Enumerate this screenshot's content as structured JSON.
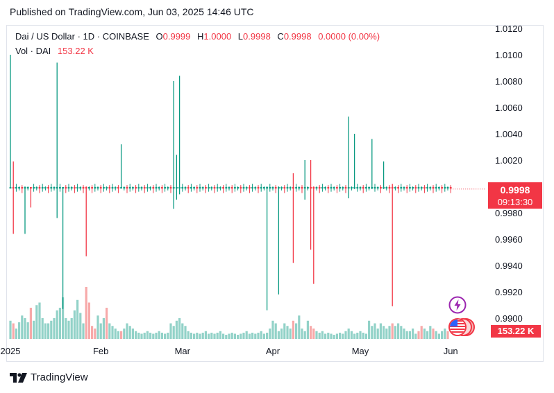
{
  "published": "Published on TradingView.com, Jun 03, 2025 14:46 UTC",
  "legend": {
    "symbol": "Dai / US Dollar · 1D · COINBASE",
    "o_label": "O",
    "o_value": "0.9999",
    "h_label": "H",
    "h_value": "1.0000",
    "l_label": "L",
    "l_value": "0.9998",
    "c_label": "C",
    "c_value": "0.9998",
    "change": "0.0000 (0.00%)",
    "vol_label": "Vol · DAI",
    "vol_value": "153.22 K"
  },
  "price_tag": {
    "price": "0.9998",
    "countdown": "09:13:30"
  },
  "volume_tag": "153.22 K",
  "brand": "TradingView",
  "colors": {
    "up": "#089981",
    "down": "#f23645",
    "up_vol": "#92d2c8",
    "down_vol": "#f7a9a9",
    "text": "#131722",
    "accent": "#9c27b0"
  },
  "icons": [
    "flash-icon",
    "us-flag-icon",
    "tradingview-logo-icon"
  ],
  "chart_data": {
    "type": "candlestick",
    "y_ticks": [
      "1.0120",
      "1.0100",
      "1.0080",
      "1.0060",
      "1.0040",
      "1.0020",
      "0.9980",
      "0.9960",
      "0.9940",
      "0.9920",
      "0.9900"
    ],
    "ylim": [
      0.9885,
      1.013
    ],
    "x_ticks": [
      {
        "label": "2025",
        "day": 0
      },
      {
        "label": "Feb",
        "day": 31
      },
      {
        "label": "Mar",
        "day": 59
      },
      {
        "label": "Apr",
        "day": 90
      },
      {
        "label": "May",
        "day": 120
      },
      {
        "label": "Jun",
        "day": 151
      }
    ],
    "last_close": 0.9998,
    "current_volume": "153.22 K",
    "spike_candles": [
      {
        "day": 0,
        "high": 1.01,
        "low": 0.9999,
        "dir": "up"
      },
      {
        "day": 1,
        "high": 1.0019,
        "low": 0.9964,
        "dir": "down"
      },
      {
        "day": 5,
        "high": 1.0,
        "low": 0.9964,
        "dir": "up"
      },
      {
        "day": 7,
        "high": 0.9999,
        "low": 0.9984,
        "dir": "down"
      },
      {
        "day": 16,
        "high": 1.0094,
        "low": 0.9976,
        "dir": "up"
      },
      {
        "day": 18,
        "high": 0.9999,
        "low": 0.9907,
        "dir": "up"
      },
      {
        "day": 26,
        "high": 1.0,
        "low": 0.9947,
        "dir": "down"
      },
      {
        "day": 38,
        "high": 1.0032,
        "low": 0.9999,
        "dir": "up"
      },
      {
        "day": 56,
        "high": 1.008,
        "low": 0.9983,
        "dir": "up"
      },
      {
        "day": 57,
        "high": 1.0024,
        "low": 0.999,
        "dir": "up"
      },
      {
        "day": 58,
        "high": 1.0084,
        "low": 0.9994,
        "dir": "up"
      },
      {
        "day": 88,
        "high": 1.0,
        "low": 0.9906,
        "dir": "up"
      },
      {
        "day": 92,
        "high": 1.0,
        "low": 0.9918,
        "dir": "up"
      },
      {
        "day": 97,
        "high": 1.001,
        "low": 0.9942,
        "dir": "down"
      },
      {
        "day": 101,
        "high": 1.002,
        "low": 0.999,
        "dir": "up"
      },
      {
        "day": 103,
        "high": 1.002,
        "low": 0.9952,
        "dir": "down"
      },
      {
        "day": 104,
        "high": 1.0,
        "low": 0.9926,
        "dir": "down"
      },
      {
        "day": 116,
        "high": 1.0053,
        "low": 0.9991,
        "dir": "up"
      },
      {
        "day": 118,
        "high": 1.004,
        "low": 0.9998,
        "dir": "up"
      },
      {
        "day": 124,
        "high": 1.0036,
        "low": 0.9998,
        "dir": "up"
      },
      {
        "day": 128,
        "high": 1.0019,
        "low": 0.9998,
        "dir": "up"
      },
      {
        "day": 131,
        "high": 1.0002,
        "low": 0.9909,
        "dir": "down"
      }
    ],
    "volumes": [
      0.35,
      0.3,
      0.2,
      0.32,
      0.45,
      0.4,
      0.32,
      0.6,
      0.35,
      0.65,
      0.7,
      0.4,
      0.3,
      0.3,
      0.35,
      0.4,
      0.55,
      0.6,
      0.8,
      0.4,
      0.35,
      0.4,
      0.55,
      0.75,
      0.5,
      0.3,
      1.0,
      0.7,
      0.25,
      0.2,
      0.45,
      0.3,
      0.4,
      0.6,
      0.3,
      0.25,
      0.2,
      0.15,
      0.15,
      0.2,
      0.3,
      0.25,
      0.2,
      0.15,
      0.12,
      0.1,
      0.12,
      0.15,
      0.12,
      0.1,
      0.12,
      0.15,
      0.12,
      0.1,
      0.12,
      0.3,
      0.25,
      0.35,
      0.4,
      0.3,
      0.25,
      0.15,
      0.12,
      0.1,
      0.12,
      0.1,
      0.12,
      0.15,
      0.1,
      0.12,
      0.1,
      0.12,
      0.15,
      0.1,
      0.08,
      0.1,
      0.12,
      0.1,
      0.08,
      0.1,
      0.12,
      0.15,
      0.1,
      0.12,
      0.1,
      0.12,
      0.15,
      0.1,
      0.12,
      0.2,
      0.35,
      0.3,
      0.15,
      0.2,
      0.3,
      0.25,
      0.2,
      0.35,
      0.3,
      0.45,
      0.2,
      0.15,
      0.35,
      0.25,
      0.2,
      0.15,
      0.12,
      0.15,
      0.1,
      0.12,
      0.1,
      0.08,
      0.1,
      0.12,
      0.1,
      0.15,
      0.2,
      0.15,
      0.1,
      0.12,
      0.15,
      0.12,
      0.1,
      0.35,
      0.25,
      0.3,
      0.2,
      0.3,
      0.25,
      0.2,
      0.25,
      0.3,
      0.25,
      0.3,
      0.25,
      0.2,
      0.15,
      0.15,
      0.2,
      0.1,
      0.15,
      0.25,
      0.2,
      0.15,
      0.25,
      0.2,
      0.15,
      0.1,
      0.15,
      0.2,
      0.15
    ],
    "volume_down_days": [
      1,
      7,
      26,
      27,
      28,
      29,
      33,
      38,
      97,
      103,
      104,
      131,
      140,
      141,
      145,
      150,
      151
    ]
  }
}
